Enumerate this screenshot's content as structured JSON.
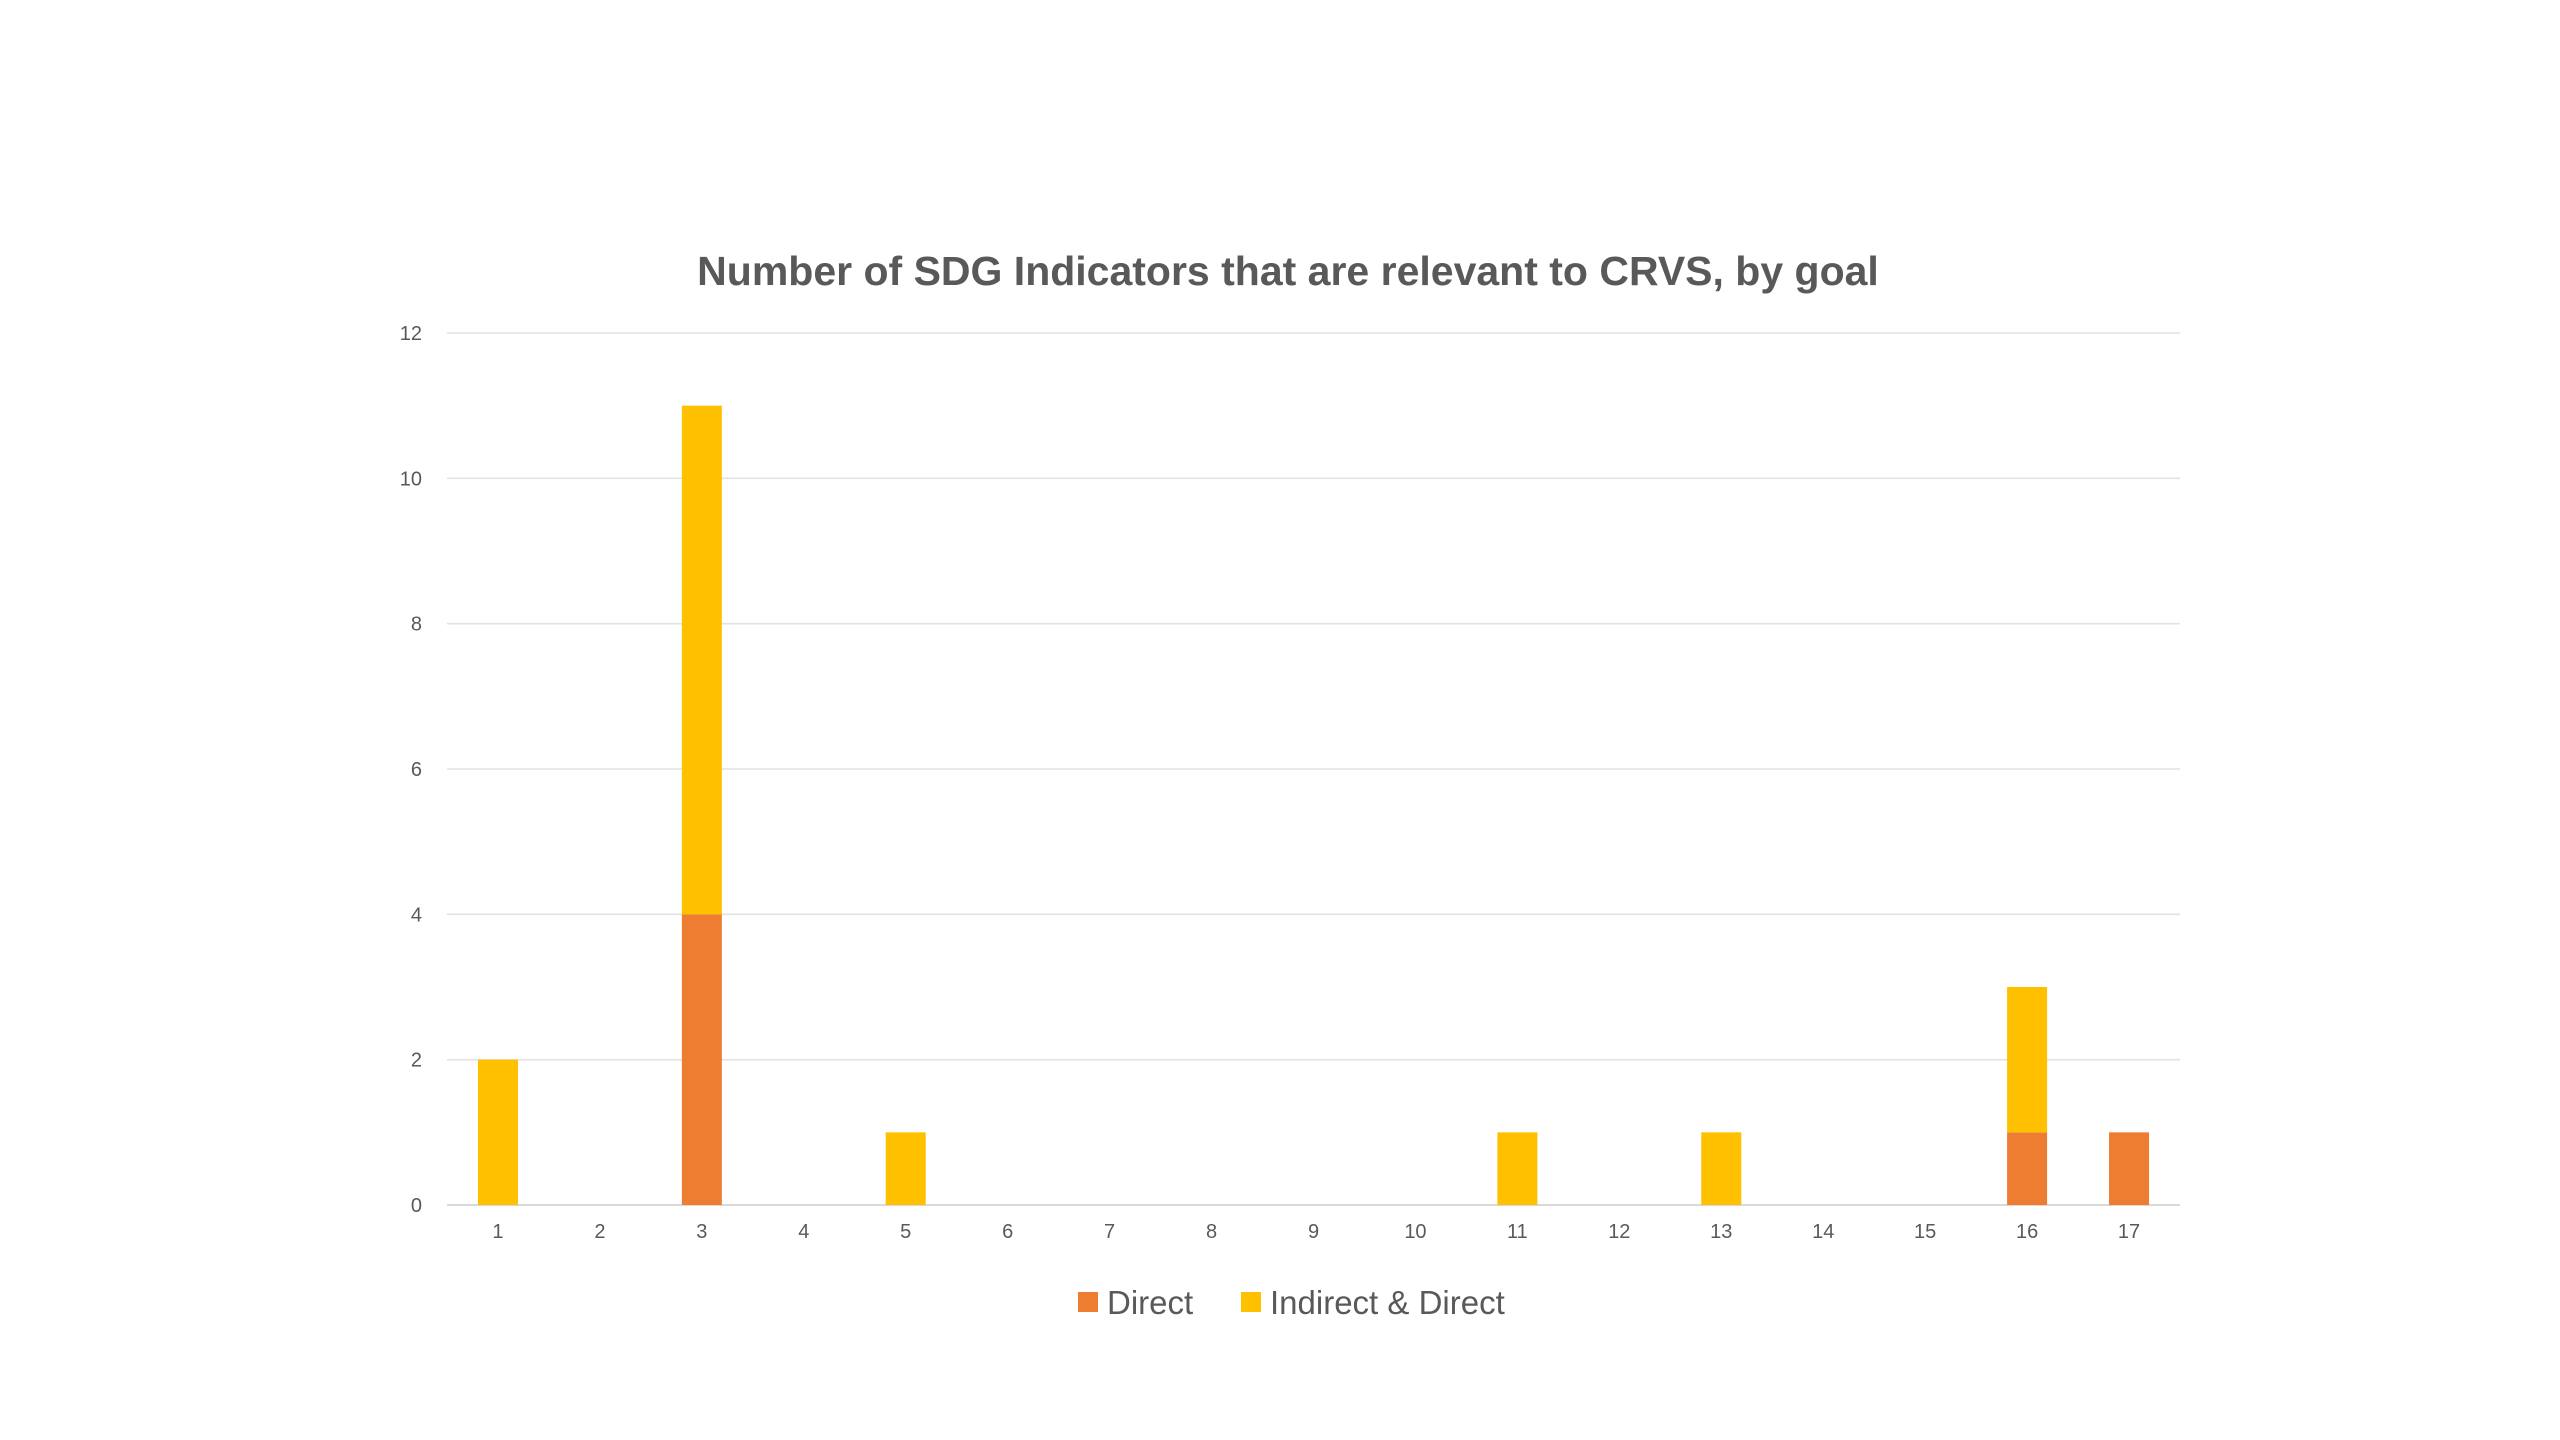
{
  "chart_data": {
    "type": "bar",
    "stacked": true,
    "title": "Number of SDG Indicators that are relevant to CRVS, by goal",
    "xlabel": "",
    "ylabel": "",
    "categories": [
      "1",
      "2",
      "3",
      "4",
      "5",
      "6",
      "7",
      "8",
      "9",
      "10",
      "11",
      "12",
      "13",
      "14",
      "15",
      "16",
      "17"
    ],
    "series": [
      {
        "name": "Direct",
        "color": "#ED7D31",
        "values": [
          0,
          0,
          4,
          0,
          0,
          0,
          0,
          0,
          0,
          0,
          0,
          0,
          0,
          0,
          0,
          1,
          1
        ]
      },
      {
        "name": "Indirect & Direct",
        "color": "#FFC000",
        "values": [
          2,
          0,
          7,
          0,
          1,
          0,
          0,
          0,
          0,
          0,
          1,
          0,
          1,
          0,
          0,
          2,
          0
        ]
      }
    ],
    "ylim": [
      0,
      12
    ],
    "yticks": [
      0,
      2,
      4,
      6,
      8,
      10,
      12
    ],
    "grid": true,
    "legend_position": "bottom"
  }
}
